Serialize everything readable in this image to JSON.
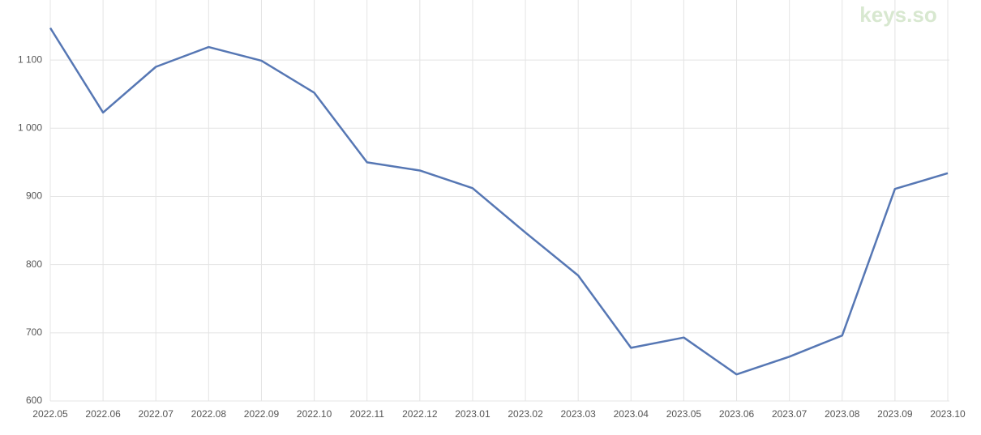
{
  "chart_data": {
    "type": "line",
    "watermark": "keys.so",
    "categories": [
      "2022.05",
      "2022.06",
      "2022.07",
      "2022.08",
      "2022.09",
      "2022.10",
      "2022.11",
      "2022.12",
      "2023.01",
      "2023.02",
      "2023.03",
      "2023.04",
      "2023.05",
      "2023.06",
      "2023.07",
      "2023.08",
      "2023.09",
      "2023.10"
    ],
    "series": [
      {
        "color": "#5677b4",
        "values": [
          1147,
          1023,
          1090,
          1119,
          1099,
          1052,
          950,
          938,
          912,
          847,
          784,
          678,
          693,
          639,
          665,
          696,
          911,
          934
        ]
      }
    ],
    "ylim": [
      600,
      1188
    ],
    "yticks": [
      600,
      700,
      800,
      900,
      {
        "value": 1000,
        "label": "1 000"
      },
      {
        "value": 1100,
        "label": "1 100"
      }
    ],
    "grid": true
  }
}
